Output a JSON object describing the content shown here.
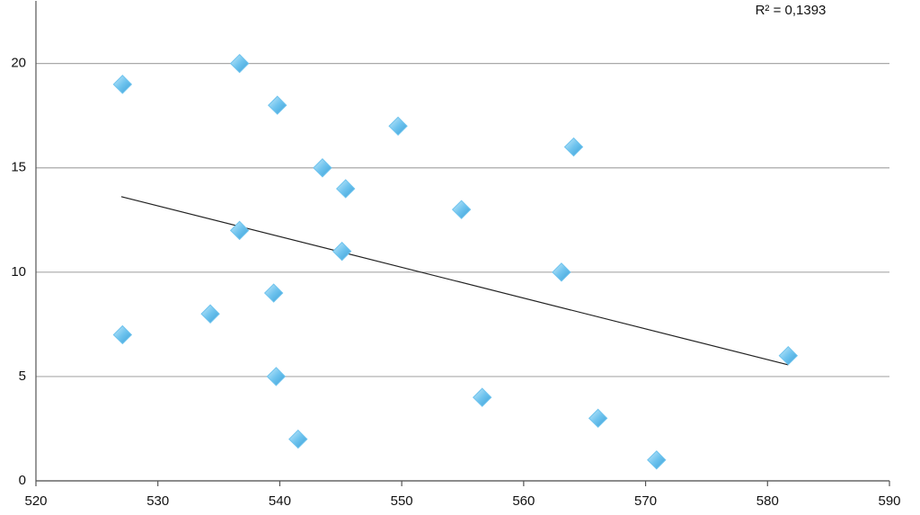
{
  "chart_data": {
    "type": "scatter",
    "annotation": "R² = 0,1393",
    "x": [
      527.1,
      536.7,
      539.8,
      549.7,
      564.1,
      543.5,
      545.4,
      554.9,
      536.7,
      545.1,
      563.1,
      539.5,
      534.3,
      527.1,
      581.7,
      539.7,
      556.6,
      566.1,
      541.5,
      570.9
    ],
    "values": [
      19,
      20,
      18,
      17,
      16,
      15,
      14,
      13,
      12,
      11,
      10,
      9,
      8,
      7,
      6,
      5,
      4,
      3,
      2,
      1
    ],
    "color": "#6ec3ee",
    "trendline": {
      "x": [
        527.0,
        581.7
      ],
      "y": [
        13.62,
        5.56
      ],
      "color": "#222222"
    },
    "xlim": [
      520,
      590
    ],
    "ylim": [
      0,
      23
    ],
    "xticks": [
      520,
      530,
      540,
      550,
      560,
      570,
      580,
      590
    ],
    "yticks": [
      0,
      5,
      10,
      15,
      20
    ],
    "grid": true
  }
}
